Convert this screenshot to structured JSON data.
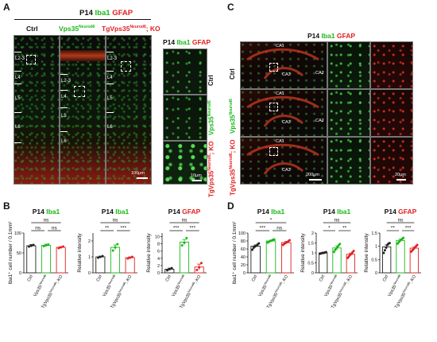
{
  "panels": {
    "A": {
      "letter": "A",
      "title": {
        "prefix": "P14",
        "green": "Iba1",
        "red": "GFAP"
      },
      "columns": {
        "ctrl": "Ctrl",
        "vps": "Vps35",
        "vps_sup": "Neurod6",
        "tg": "TgVps35",
        "tg_sup": "Neurod6",
        "tg_suffix": "; KO"
      },
      "layers": [
        "L2-3",
        "L4",
        "L5",
        "L6"
      ],
      "scale": "100μm",
      "zoom_title": {
        "prefix": "P14",
        "green": "Iba1",
        "red": "GFAP"
      },
      "zoom_rows": {
        "ctrl": "Ctrl",
        "vps": "Vps35",
        "vps_sup": "Neurod6",
        "tg": "TgVps35",
        "tg_sup": "Neurod6",
        "tg_suffix": "; KO"
      },
      "zoom_scale": "10μm"
    },
    "C": {
      "letter": "C",
      "title": {
        "prefix": "P14",
        "green": "Iba1",
        "red": "GFAP"
      },
      "regions": [
        "CA1",
        "CA3",
        "CA2"
      ],
      "rows": {
        "ctrl": "Ctrl",
        "vps": "Vps35",
        "vps_sup": "Neurod6",
        "tg": "TgVps35",
        "tg_sup": "Neurod6",
        "tg_suffix": "; KO"
      },
      "scale_left": "200μm",
      "scale_right": "20μm"
    },
    "B": {
      "letter": "B"
    },
    "D": {
      "letter": "D"
    }
  },
  "chart_data": [
    {
      "id": "B1",
      "type": "bar",
      "title": {
        "prefix": "P14",
        "marker": "Iba1",
        "marker_color": "#17b917"
      },
      "ylabel": "Iba1⁺ cell number / 0.1mm²",
      "ylim": [
        0,
        100
      ],
      "yticks": [
        0,
        50,
        100
      ],
      "categories": [
        "Ctrl",
        "Vps35Neurod6",
        "TgVps35Neurod6; KO"
      ],
      "category_labels": [
        {
          "main": "Ctrl"
        },
        {
          "main": "Vps35",
          "sup": "Neurod6"
        },
        {
          "main": "TgVps35",
          "sup": "Neurod6",
          "suffix": "; KO"
        }
      ],
      "values": [
        68,
        69,
        64
      ],
      "errors": [
        3,
        3,
        2
      ],
      "points": [
        [
          66,
          68,
          70
        ],
        [
          67,
          69,
          71
        ],
        [
          62,
          64,
          66
        ]
      ],
      "significance": [
        {
          "from": 0,
          "to": 2,
          "label": "ns",
          "level": 2
        },
        {
          "from": 0,
          "to": 1,
          "label": "ns",
          "level": 1
        },
        {
          "from": 1,
          "to": 2,
          "label": "ns",
          "level": 1
        }
      ]
    },
    {
      "id": "B2",
      "type": "bar",
      "title": {
        "prefix": "P14",
        "marker": "Iba1",
        "marker_color": "#17b917"
      },
      "ylabel": "Relative intensity",
      "ylim": [
        0,
        2.5
      ],
      "yticks": [
        0,
        1,
        2
      ],
      "categories": [
        "Ctrl",
        "Vps35Neurod6",
        "TgVps35Neurod6; KO"
      ],
      "category_labels": [
        {
          "main": "Ctrl"
        },
        {
          "main": "Vps35",
          "sup": "Neurod6"
        },
        {
          "main": "TgVps35",
          "sup": "Neurod6",
          "suffix": "; KO"
        }
      ],
      "values": [
        1.0,
        1.6,
        0.95
      ],
      "errors": [
        0.05,
        0.15,
        0.05
      ],
      "points": [
        [
          0.95,
          1.0,
          1.05
        ],
        [
          1.4,
          1.6,
          1.8
        ],
        [
          0.9,
          0.95,
          1.0
        ]
      ],
      "significance": [
        {
          "from": 0,
          "to": 2,
          "label": "ns",
          "level": 2
        },
        {
          "from": 0,
          "to": 1,
          "label": "**",
          "level": 1
        },
        {
          "from": 1,
          "to": 2,
          "label": "***",
          "level": 1
        }
      ]
    },
    {
      "id": "B3",
      "type": "bar",
      "title": {
        "prefix": "P14",
        "marker": "GFAP",
        "marker_color": "#e32020"
      },
      "ylabel": "Relative intensity",
      "ylim": [
        0,
        11
      ],
      "yticks": [
        0,
        2,
        4,
        6,
        8,
        10
      ],
      "categories": [
        "Ctrl",
        "Vps35Neurod6",
        "TgVps35Neurod6; KO"
      ],
      "category_labels": [
        {
          "main": "Ctrl"
        },
        {
          "main": "Vps35",
          "sup": "Neurod6"
        },
        {
          "main": "TgVps35",
          "sup": "Neurod6",
          "suffix": "; KO"
        }
      ],
      "values": [
        1.0,
        8.5,
        1.6
      ],
      "errors": [
        0.3,
        0.7,
        0.8
      ],
      "points": [
        [
          0.7,
          1.0,
          1.3
        ],
        [
          7.6,
          8.3,
          9.6
        ],
        [
          0.8,
          1.5,
          2.7
        ]
      ],
      "significance": [
        {
          "from": 0,
          "to": 2,
          "label": "ns",
          "level": 2
        },
        {
          "from": 0,
          "to": 1,
          "label": "***",
          "level": 1
        },
        {
          "from": 1,
          "to": 2,
          "label": "***",
          "level": 1
        }
      ]
    },
    {
      "id": "D1",
      "type": "bar",
      "title": {
        "prefix": "P14",
        "marker": "Iba1",
        "marker_color": "#17b917"
      },
      "ylabel": "Iba1⁺ cell number / 0.1mm²",
      "ylim": [
        0,
        100
      ],
      "yticks": [
        0,
        20,
        40,
        60,
        80,
        100
      ],
      "categories": [
        "Ctrl",
        "Vps35Neurod6",
        "TgVps35Neurod6; KO"
      ],
      "category_labels": [
        {
          "main": "Ctrl"
        },
        {
          "main": "Vps35",
          "sup": "Neurod6"
        },
        {
          "main": "TgVps35",
          "sup": "Neurod6",
          "suffix": "; KO"
        }
      ],
      "values": [
        67,
        80,
        76
      ],
      "errors": [
        3,
        2,
        3
      ],
      "points": [
        [
          58,
          63,
          66,
          68,
          71,
          74
        ],
        [
          76,
          78,
          80,
          81,
          83,
          84
        ],
        [
          70,
          73,
          75,
          77,
          79,
          82
        ]
      ],
      "significance": [
        {
          "from": 0,
          "to": 2,
          "label": "*",
          "level": 2
        },
        {
          "from": 0,
          "to": 1,
          "label": "***",
          "level": 1
        },
        {
          "from": 1,
          "to": 2,
          "label": "ns",
          "level": 1
        }
      ]
    },
    {
      "id": "D2",
      "type": "bar",
      "title": {
        "prefix": "P14",
        "marker": "Iba1",
        "marker_color": "#17b917"
      },
      "ylabel": "Relative intensity",
      "ylim": [
        0,
        2.0
      ],
      "yticks": [
        0,
        0.5,
        1.0,
        1.5,
        2.0
      ],
      "categories": [
        "Ctrl",
        "Vps35Neurod6",
        "TgVps35Neurod6; KO"
      ],
      "category_labels": [
        {
          "main": "Ctrl"
        },
        {
          "main": "Vps35",
          "sup": "Neurod6"
        },
        {
          "main": "TgVps35",
          "sup": "Neurod6",
          "suffix": "; KO"
        }
      ],
      "values": [
        1.0,
        1.25,
        0.93
      ],
      "errors": [
        0.02,
        0.1,
        0.06
      ],
      "points": [
        [
          0.96,
          0.98,
          1.0,
          1.0,
          1.02,
          1.04
        ],
        [
          1.05,
          1.15,
          1.22,
          1.3,
          1.38,
          1.45
        ],
        [
          0.75,
          0.82,
          0.9,
          0.95,
          1.02,
          1.1
        ]
      ],
      "significance": [
        {
          "from": 0,
          "to": 2,
          "label": "ns",
          "level": 2
        },
        {
          "from": 0,
          "to": 1,
          "label": "*",
          "level": 1
        },
        {
          "from": 1,
          "to": 2,
          "label": "**",
          "level": 1
        }
      ]
    },
    {
      "id": "D3",
      "type": "bar",
      "title": {
        "prefix": "P14",
        "marker": "GFAP",
        "marker_color": "#e32020"
      },
      "ylabel": "Relative intensity",
      "ylim": [
        0,
        1.5
      ],
      "yticks": [
        0,
        0.5,
        1.0,
        1.5
      ],
      "categories": [
        "Ctrl",
        "Vps35Neurod6",
        "TgVps35Neurod6; KO"
      ],
      "category_labels": [
        {
          "main": "Ctrl"
        },
        {
          "main": "Vps35",
          "sup": "Neurod6"
        },
        {
          "main": "TgVps35",
          "sup": "Neurod6",
          "suffix": "; KO"
        }
      ],
      "values": [
        0.98,
        1.22,
        0.93
      ],
      "errors": [
        0.07,
        0.05,
        0.05
      ],
      "points": [
        [
          0.75,
          0.85,
          0.95,
          1.05,
          1.1,
          1.12
        ],
        [
          1.1,
          1.15,
          1.2,
          1.25,
          1.28,
          1.32
        ],
        [
          0.8,
          0.85,
          0.9,
          0.95,
          1.0,
          1.05
        ]
      ],
      "significance": [
        {
          "from": 0,
          "to": 2,
          "label": "ns",
          "level": 2
        },
        {
          "from": 0,
          "to": 1,
          "label": "**",
          "level": 1
        },
        {
          "from": 1,
          "to": 2,
          "label": "***",
          "level": 1
        }
      ]
    }
  ],
  "colors": {
    "ctrl": "#222222",
    "vps": "#17b917",
    "tg": "#e32020",
    "green": "#17b917",
    "red": "#e32020"
  }
}
